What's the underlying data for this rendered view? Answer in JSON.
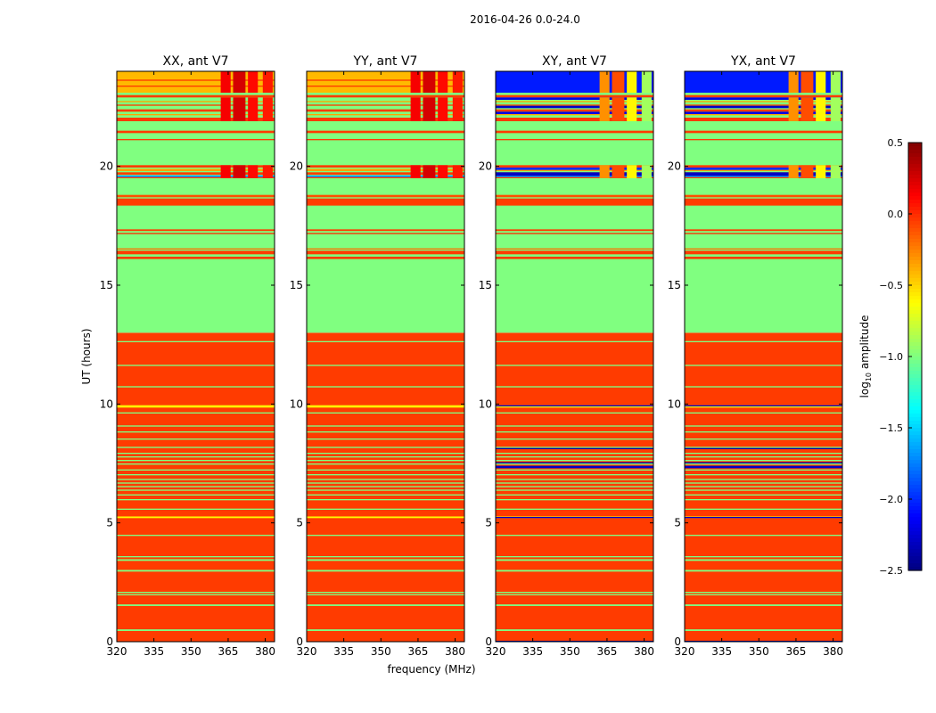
{
  "chart_data": {
    "type": "heatmap",
    "title": "2016-04-26 0.0-24.0",
    "xlabel": "frequency (MHz)",
    "ylabel": "UT (hours)",
    "xlim": [
      320,
      383.75
    ],
    "ylim": [
      0,
      24
    ],
    "xticks": [
      320,
      335,
      350,
      365,
      380
    ],
    "yticks": [
      0,
      5,
      10,
      15,
      20
    ],
    "colorbar": {
      "label_prefix": "log",
      "label_sub": "10",
      "label_suffix": " amplitude",
      "colormap": "jet",
      "range": [
        -2.5,
        0.5
      ],
      "ticks": [
        "0.5",
        "0.0",
        "−0.5",
        "−1.0",
        "−1.5",
        "−2.0",
        "−2.5"
      ],
      "tick_values": [
        0.5,
        0.0,
        -0.5,
        -1.0,
        -1.5,
        -2.0,
        -2.5
      ]
    },
    "panels": [
      {
        "title": "XX, ant V7",
        "kind": "auto"
      },
      {
        "title": "YY, ant V7",
        "kind": "auto"
      },
      {
        "title": "XY, ant V7",
        "kind": "cross"
      },
      {
        "title": "YX, ant V7",
        "kind": "cross"
      }
    ],
    "base_rows": [
      [
        0,
        13,
        -0.05
      ],
      [
        13,
        24,
        -1.0
      ]
    ],
    "rows": [
      [
        0.45,
        0.52,
        -1.0
      ],
      [
        1.5,
        1.57,
        -1.0
      ],
      [
        1.95,
        2.0,
        -1.0
      ],
      [
        2.05,
        2.1,
        -1.0
      ],
      [
        2.95,
        3.02,
        -1.0
      ],
      [
        3.4,
        3.47,
        -1.0
      ],
      [
        3.55,
        3.6,
        -1.0
      ],
      [
        4.45,
        4.5,
        -1.0
      ],
      [
        5.2,
        5.27,
        -0.6
      ],
      [
        5.55,
        5.6,
        -1.0
      ],
      [
        5.95,
        6.0,
        -1.0
      ],
      [
        6.15,
        6.2,
        -1.0
      ],
      [
        6.35,
        6.4,
        -1.0
      ],
      [
        6.5,
        6.55,
        -1.0
      ],
      [
        6.65,
        6.7,
        -1.0
      ],
      [
        6.8,
        6.85,
        -1.0
      ],
      [
        7.0,
        7.05,
        -1.0
      ],
      [
        7.2,
        7.25,
        -1.0
      ],
      [
        7.45,
        7.5,
        -1.0
      ],
      [
        7.6,
        7.65,
        -1.0
      ],
      [
        7.75,
        7.8,
        -1.0
      ],
      [
        7.9,
        7.95,
        -1.0
      ],
      [
        8.15,
        8.2,
        -1.0
      ],
      [
        8.5,
        8.55,
        -1.0
      ],
      [
        8.8,
        8.85,
        -1.0
      ],
      [
        9.05,
        9.1,
        -1.0
      ],
      [
        9.6,
        9.65,
        -1.0
      ],
      [
        9.85,
        9.95,
        -0.6
      ],
      [
        10.7,
        10.75,
        -1.0
      ],
      [
        11.6,
        11.65,
        -1.0
      ],
      [
        12.6,
        12.65,
        -1.0
      ],
      [
        16.1,
        16.2,
        -0.05
      ],
      [
        16.3,
        16.45,
        -0.05
      ],
      [
        16.5,
        16.55,
        -0.2
      ],
      [
        17.15,
        17.2,
        0.0
      ],
      [
        17.28,
        17.35,
        -0.05
      ],
      [
        18.35,
        18.65,
        -0.05
      ],
      [
        18.7,
        18.8,
        -0.1
      ],
      [
        19.5,
        19.55,
        -0.05
      ],
      [
        19.55,
        19.62,
        -1.7
      ],
      [
        19.65,
        19.75,
        -0.05
      ],
      [
        19.8,
        19.9,
        -0.35
      ],
      [
        19.95,
        20.05,
        -0.05
      ],
      [
        21.1,
        21.15,
        -0.05
      ],
      [
        21.4,
        21.5,
        -0.05
      ],
      [
        21.9,
        22.05,
        -0.05
      ],
      [
        22.15,
        22.2,
        -0.35
      ],
      [
        22.3,
        22.4,
        -0.05
      ],
      [
        22.55,
        22.6,
        -0.05
      ],
      [
        22.7,
        22.75,
        -0.35
      ],
      [
        22.9,
        23.0,
        -0.05
      ],
      [
        23.1,
        24,
        -0.42
      ],
      [
        23.35,
        23.4,
        -0.05
      ],
      [
        23.6,
        23.65,
        -0.05
      ]
    ],
    "cross_rows": [
      [
        23.1,
        24,
        -2.05
      ],
      [
        22.2,
        22.3,
        -2.2
      ],
      [
        22.45,
        22.55,
        -2.3
      ],
      [
        22.8,
        22.9,
        -2.2
      ],
      [
        19.6,
        19.75,
        -2.3
      ],
      [
        19.85,
        19.95,
        -2.0
      ],
      [
        7.3,
        7.4,
        -2.3
      ],
      [
        7.5,
        7.55,
        -2.4
      ],
      [
        9.9,
        9.95,
        -2.3
      ],
      [
        5.2,
        5.25,
        -2.3
      ],
      [
        8.1,
        8.15,
        -2.4
      ],
      [
        0,
        0.04,
        -2.4
      ]
    ],
    "rfi_blocks": {
      "freq_ranges": [
        [
          362,
          366
        ],
        [
          367,
          372
        ],
        [
          373,
          377
        ],
        [
          379,
          383
        ]
      ],
      "time_ranges": [
        [
          23.1,
          24
        ],
        [
          21.9,
          22.9
        ],
        [
          19.5,
          20.05
        ]
      ],
      "auto_values": [
        0.15,
        0.25,
        0.1,
        0.05
      ],
      "cross_values": [
        -0.3,
        -0.1,
        -0.6,
        -0.9
      ]
    }
  }
}
